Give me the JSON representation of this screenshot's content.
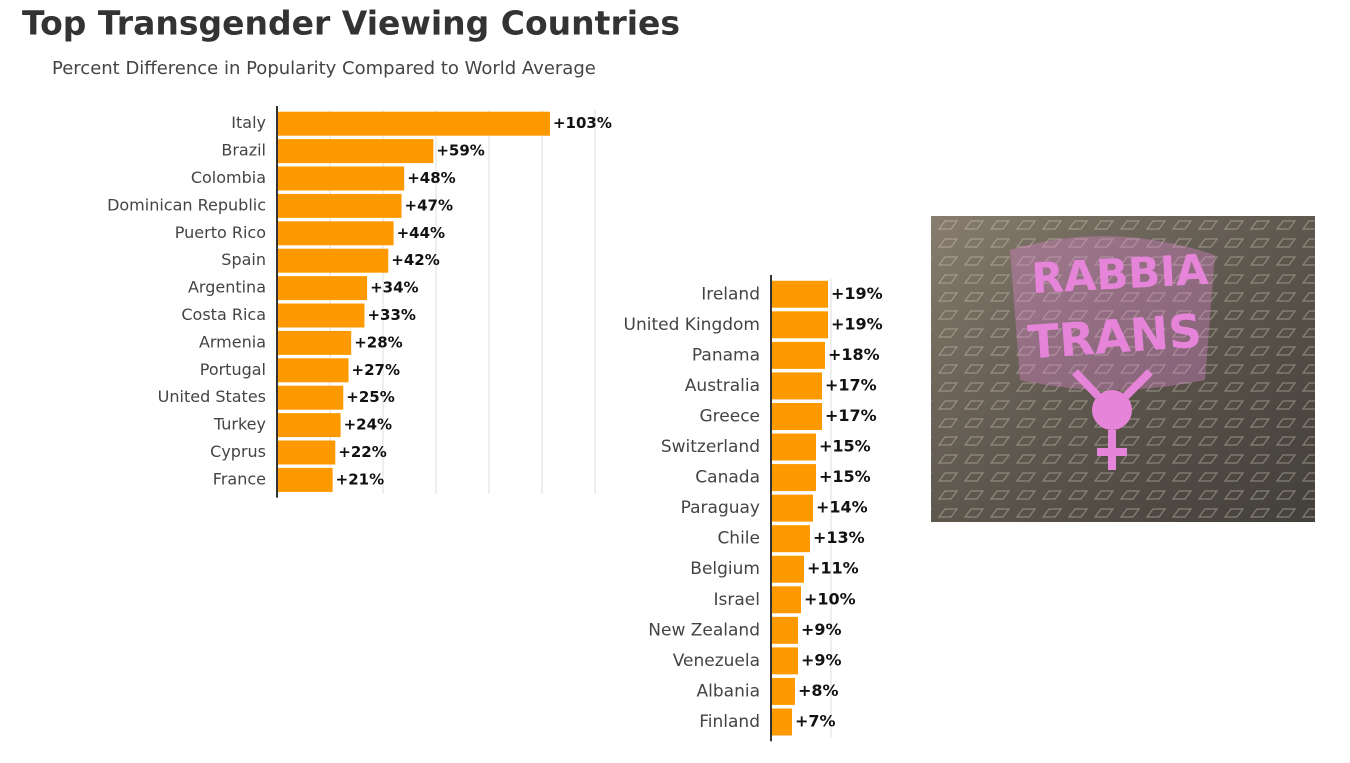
{
  "chart_data": [
    {
      "type": "hbar",
      "title": "Top Transgender Viewing Countries",
      "subtitle": "Percent Difference in Popularity Compared to World Average",
      "categories": [
        "Italy",
        "Brazil",
        "Colombia",
        "Dominican Republic",
        "Puerto Rico",
        "Spain",
        "Argentina",
        "Costa Rica",
        "Armenia",
        "Portugal",
        "United States",
        "Turkey",
        "Cyprus",
        "France"
      ],
      "values": [
        103,
        59,
        48,
        47,
        44,
        42,
        34,
        33,
        28,
        27,
        25,
        24,
        22,
        21
      ],
      "value_labels": [
        "+103%",
        "+59%",
        "+48%",
        "+47%",
        "+44%",
        "+42%",
        "+34%",
        "+33%",
        "+28%",
        "+27%",
        "+25%",
        "+24%",
        "+22%",
        "+21%"
      ],
      "color": "#ff9900",
      "xlim": [
        0,
        120
      ],
      "xticks": [
        0,
        20,
        40,
        60,
        80,
        100,
        120
      ],
      "grid": true
    },
    {
      "type": "hbar",
      "categories": [
        "Ireland",
        "United Kingdom",
        "Panama",
        "Australia",
        "Greece",
        "Switzerland",
        "Canada",
        "Paraguay",
        "Chile",
        "Belgium",
        "Israel",
        "New Zealand",
        "Venezuela",
        "Albania",
        "Finland"
      ],
      "values": [
        19,
        19,
        18,
        17,
        17,
        15,
        15,
        14,
        13,
        11,
        10,
        9,
        9,
        8,
        7
      ],
      "value_labels": [
        "+19%",
        "+19%",
        "+18%",
        "+17%",
        "+17%",
        "+15%",
        "+15%",
        "+14%",
        "+13%",
        "+11%",
        "+10%",
        "+9%",
        "+9%",
        "+8%",
        "+7%"
      ],
      "color": "#ff9900",
      "xlim": [
        0,
        20
      ],
      "xticks": [
        0,
        20
      ],
      "grid": true
    }
  ],
  "photo": {
    "graffiti": [
      "RABBIA",
      "TRANS"
    ]
  }
}
